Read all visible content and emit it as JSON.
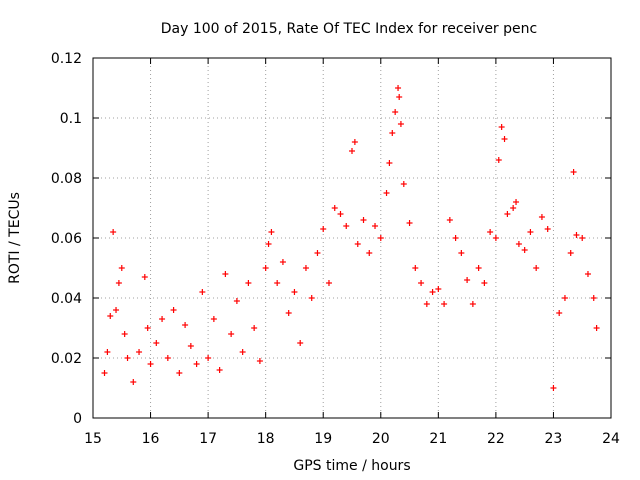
{
  "chart_data": {
    "type": "scatter",
    "title": "Day 100 of 2015, Rate Of TEC Index for receiver penc",
    "xlabel": "GPS time / hours",
    "ylabel": "ROTI / TECUs",
    "xlim": [
      15,
      24
    ],
    "ylim": [
      0,
      0.12
    ],
    "x_ticks": [
      "15",
      "16",
      "17",
      "18",
      "19",
      "20",
      "21",
      "22",
      "23",
      "24"
    ],
    "y_ticks": [
      "0",
      "0.02",
      "0.04",
      "0.06",
      "0.08",
      "0.1",
      "0.12"
    ],
    "grid": true,
    "marker": "+",
    "color": "#ff0000",
    "series": [
      {
        "name": "ROTI",
        "points": [
          [
            15.2,
            0.015
          ],
          [
            15.25,
            0.022
          ],
          [
            15.3,
            0.034
          ],
          [
            15.35,
            0.062
          ],
          [
            15.4,
            0.036
          ],
          [
            15.45,
            0.045
          ],
          [
            15.5,
            0.05
          ],
          [
            15.55,
            0.028
          ],
          [
            15.6,
            0.02
          ],
          [
            15.7,
            0.012
          ],
          [
            15.8,
            0.022
          ],
          [
            15.9,
            0.047
          ],
          [
            15.95,
            0.03
          ],
          [
            16.0,
            0.018
          ],
          [
            16.1,
            0.025
          ],
          [
            16.2,
            0.033
          ],
          [
            16.3,
            0.02
          ],
          [
            16.4,
            0.036
          ],
          [
            16.5,
            0.015
          ],
          [
            16.6,
            0.031
          ],
          [
            16.7,
            0.024
          ],
          [
            16.8,
            0.018
          ],
          [
            16.9,
            0.042
          ],
          [
            17.0,
            0.02
          ],
          [
            17.1,
            0.033
          ],
          [
            17.2,
            0.016
          ],
          [
            17.3,
            0.048
          ],
          [
            17.4,
            0.028
          ],
          [
            17.5,
            0.039
          ],
          [
            17.6,
            0.022
          ],
          [
            17.7,
            0.045
          ],
          [
            17.8,
            0.03
          ],
          [
            17.9,
            0.019
          ],
          [
            18.0,
            0.05
          ],
          [
            18.05,
            0.058
          ],
          [
            18.1,
            0.062
          ],
          [
            18.2,
            0.045
          ],
          [
            18.3,
            0.052
          ],
          [
            18.4,
            0.035
          ],
          [
            18.5,
            0.042
          ],
          [
            18.6,
            0.025
          ],
          [
            18.7,
            0.05
          ],
          [
            18.8,
            0.04
          ],
          [
            18.9,
            0.055
          ],
          [
            19.0,
            0.063
          ],
          [
            19.1,
            0.045
          ],
          [
            19.2,
            0.07
          ],
          [
            19.3,
            0.068
          ],
          [
            19.4,
            0.064
          ],
          [
            19.5,
            0.089
          ],
          [
            19.55,
            0.092
          ],
          [
            19.6,
            0.058
          ],
          [
            19.7,
            0.066
          ],
          [
            19.8,
            0.055
          ],
          [
            19.9,
            0.064
          ],
          [
            20.0,
            0.06
          ],
          [
            20.1,
            0.075
          ],
          [
            20.15,
            0.085
          ],
          [
            20.2,
            0.095
          ],
          [
            20.25,
            0.102
          ],
          [
            20.3,
            0.11
          ],
          [
            20.32,
            0.107
          ],
          [
            20.35,
            0.098
          ],
          [
            20.4,
            0.078
          ],
          [
            20.5,
            0.065
          ],
          [
            20.6,
            0.05
          ],
          [
            20.7,
            0.045
          ],
          [
            20.8,
            0.038
          ],
          [
            20.9,
            0.042
          ],
          [
            21.0,
            0.043
          ],
          [
            21.1,
            0.038
          ],
          [
            21.2,
            0.066
          ],
          [
            21.3,
            0.06
          ],
          [
            21.4,
            0.055
          ],
          [
            21.5,
            0.046
          ],
          [
            21.6,
            0.038
          ],
          [
            21.7,
            0.05
          ],
          [
            21.8,
            0.045
          ],
          [
            21.9,
            0.062
          ],
          [
            22.0,
            0.06
          ],
          [
            22.05,
            0.086
          ],
          [
            22.1,
            0.097
          ],
          [
            22.15,
            0.093
          ],
          [
            22.2,
            0.068
          ],
          [
            22.3,
            0.07
          ],
          [
            22.35,
            0.072
          ],
          [
            22.4,
            0.058
          ],
          [
            22.5,
            0.056
          ],
          [
            22.6,
            0.062
          ],
          [
            22.7,
            0.05
          ],
          [
            22.8,
            0.067
          ],
          [
            22.9,
            0.063
          ],
          [
            23.0,
            0.01
          ],
          [
            23.1,
            0.035
          ],
          [
            23.2,
            0.04
          ],
          [
            23.3,
            0.055
          ],
          [
            23.35,
            0.082
          ],
          [
            23.4,
            0.061
          ],
          [
            23.5,
            0.06
          ],
          [
            23.6,
            0.048
          ],
          [
            23.7,
            0.04
          ],
          [
            23.75,
            0.03
          ]
        ]
      }
    ]
  }
}
